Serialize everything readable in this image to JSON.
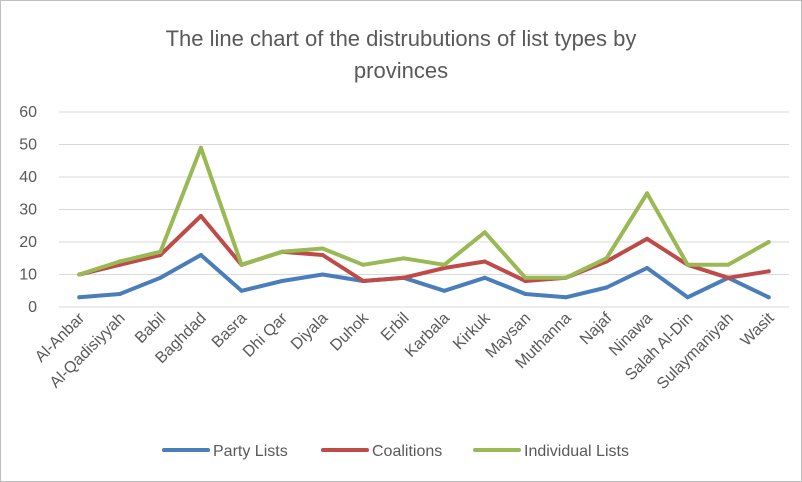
{
  "chart_data": {
    "type": "line",
    "title_lines": [
      "The line chart of the distrubutions of list types by",
      "provinces"
    ],
    "xlabel": "",
    "ylabel": "",
    "ylim": [
      0,
      60
    ],
    "yticks": [
      0,
      10,
      20,
      30,
      40,
      50,
      60
    ],
    "grid": true,
    "legend_position": "bottom",
    "categories": [
      "Al-Anbar",
      "Al-Qadisiyyah",
      "Babil",
      "Baghdad",
      "Basra",
      "Dhi Qar",
      "Diyala",
      "Duhok",
      "Erbil",
      "Karbala",
      "Kirkuk",
      "Maysan",
      "Muthanna",
      "Najaf",
      "Ninawa",
      "Salah Al-Din",
      "Sulaymaniyah",
      "Wasit"
    ],
    "series": [
      {
        "name": "Party Lists",
        "color": "#4a7ebb",
        "values": [
          3,
          4,
          9,
          16,
          5,
          8,
          10,
          8,
          9,
          5,
          9,
          4,
          3,
          6,
          12,
          3,
          9,
          3
        ]
      },
      {
        "name": "Coalitions",
        "color": "#be4b48",
        "values": [
          10,
          13,
          16,
          28,
          13,
          17,
          16,
          8,
          9,
          12,
          14,
          8,
          9,
          14,
          21,
          13,
          9,
          11
        ]
      },
      {
        "name": "Individual Lists",
        "color": "#98b954",
        "values": [
          10,
          14,
          17,
          49,
          13,
          17,
          18,
          13,
          15,
          13,
          23,
          9,
          9,
          15,
          35,
          13,
          13,
          20
        ]
      }
    ]
  }
}
